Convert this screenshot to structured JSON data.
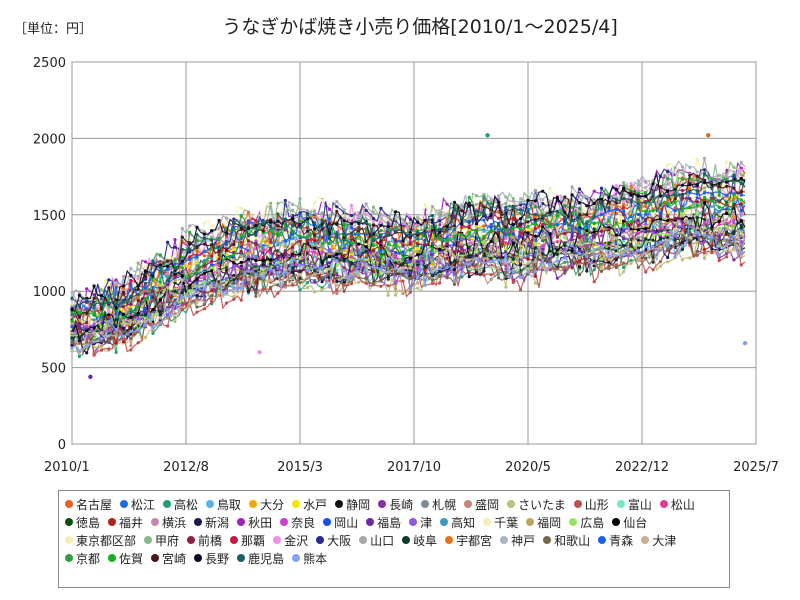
{
  "header": {
    "unit_label": "［単位：円］",
    "title": "うなぎかば焼き小売り価格[2010/1～2025/4]"
  },
  "chart_data": {
    "type": "line",
    "title": "うなぎかば焼き小売り価格[2010/1～2025/4]",
    "unit": "円",
    "x_ticks": [
      "2010/1",
      "2012/8",
      "2015/3",
      "2017/10",
      "2020/5",
      "2022/12",
      "2025/7"
    ],
    "y_ticks": [
      0,
      500,
      1000,
      1500,
      2000,
      2500
    ],
    "ylim": [
      0,
      2500
    ],
    "x_range": [
      "2010/1",
      "2025/7"
    ],
    "grid": true,
    "legend_position": "bottom",
    "overall_trend": [
      {
        "date": "2010/1",
        "low": 600,
        "high": 950
      },
      {
        "date": "2011/1",
        "low": 620,
        "high": 1050
      },
      {
        "date": "2012/8",
        "low": 850,
        "high": 1400
      },
      {
        "date": "2014/1",
        "low": 950,
        "high": 1550
      },
      {
        "date": "2015/3",
        "low": 1000,
        "high": 1600
      },
      {
        "date": "2016/6",
        "low": 1000,
        "high": 1550
      },
      {
        "date": "2017/10",
        "low": 1000,
        "high": 1500
      },
      {
        "date": "2019/1",
        "low": 1050,
        "high": 1650
      },
      {
        "date": "2020/5",
        "low": 1050,
        "high": 1650
      },
      {
        "date": "2021/8",
        "low": 1100,
        "high": 1650
      },
      {
        "date": "2022/12",
        "low": 1150,
        "high": 1750
      },
      {
        "date": "2024/1",
        "low": 1200,
        "high": 1850
      },
      {
        "date": "2025/4",
        "low": 1150,
        "high": 1850
      }
    ],
    "notable_points": [
      {
        "series": "高松",
        "date": "2019/6",
        "value": 2020
      },
      {
        "series": "名古屋",
        "date": "2024/6",
        "value": 2020
      },
      {
        "series": "熊本",
        "date": "2025/4",
        "value": 660
      },
      {
        "series": "金沢",
        "date": "2014/4",
        "value": 600
      },
      {
        "series": "福島",
        "date": "2010/6",
        "value": 440
      }
    ],
    "series": [
      {
        "name": "名古屋",
        "color": "#e8601c"
      },
      {
        "name": "松江",
        "color": "#1f6fe0"
      },
      {
        "name": "高松",
        "color": "#20a070"
      },
      {
        "name": "鳥取",
        "color": "#5ab4e6"
      },
      {
        "name": "大分",
        "color": "#f0a800"
      },
      {
        "name": "水戸",
        "color": "#f2e600"
      },
      {
        "name": "静岡",
        "color": "#111111"
      },
      {
        "name": "長崎",
        "color": "#8a2aa8"
      },
      {
        "name": "札幌",
        "color": "#7d8c96"
      },
      {
        "name": "盛岡",
        "color": "#c8857a"
      },
      {
        "name": "さいたま",
        "color": "#bcbf7a"
      },
      {
        "name": "山形",
        "color": "#c0504d"
      },
      {
        "name": "富山",
        "color": "#70e6c8"
      },
      {
        "name": "松山",
        "color": "#e0408a"
      },
      {
        "name": "徳島",
        "color": "#0f4d0f"
      },
      {
        "name": "福井",
        "color": "#b02418"
      },
      {
        "name": "横浜",
        "color": "#c08ab0"
      },
      {
        "name": "新潟",
        "color": "#1a1a4a"
      },
      {
        "name": "秋田",
        "color": "#a020c0"
      },
      {
        "name": "奈良",
        "color": "#d040d0"
      },
      {
        "name": "岡山",
        "color": "#1850e8"
      },
      {
        "name": "福島",
        "color": "#6a2aa0"
      },
      {
        "name": "津",
        "color": "#8a5ae0"
      },
      {
        "name": "高知",
        "color": "#3a9ab8"
      },
      {
        "name": "千葉",
        "color": "#f8eebc"
      },
      {
        "name": "福岡",
        "color": "#b8a860"
      },
      {
        "name": "広島",
        "color": "#9ae65a"
      },
      {
        "name": "仙台",
        "color": "#000000"
      },
      {
        "name": "東京都区部",
        "color": "#f6efb0"
      },
      {
        "name": "甲府",
        "color": "#8ab88a"
      },
      {
        "name": "前橋",
        "color": "#902048"
      },
      {
        "name": "那覇",
        "color": "#c81a40"
      },
      {
        "name": "金沢",
        "color": "#f090e8"
      },
      {
        "name": "大阪",
        "color": "#2a2a90"
      },
      {
        "name": "山口",
        "color": "#a8a8a8"
      },
      {
        "name": "岐阜",
        "color": "#0a3a2a"
      },
      {
        "name": "宇都宮",
        "color": "#e8701c"
      },
      {
        "name": "神戸",
        "color": "#a8b4c4"
      },
      {
        "name": "和歌山",
        "color": "#786848"
      },
      {
        "name": "青森",
        "color": "#1a60e8"
      },
      {
        "name": "大津",
        "color": "#c8b098"
      },
      {
        "name": "京都",
        "color": "#30a040"
      },
      {
        "name": "佐賀",
        "color": "#10b020"
      },
      {
        "name": "宮崎",
        "color": "#4a1a1a"
      },
      {
        "name": "長野",
        "color": "#0a0a2a"
      },
      {
        "name": "鹿児島",
        "color": "#1a6068"
      },
      {
        "name": "熊本",
        "color": "#80a0f0"
      }
    ]
  }
}
